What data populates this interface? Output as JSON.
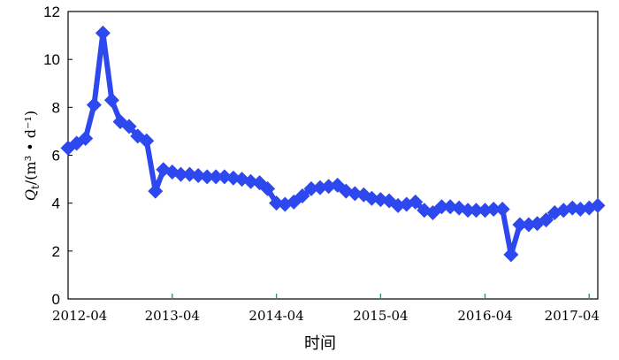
{
  "chart_data": {
    "type": "line",
    "title": "",
    "xlabel": "时间",
    "ylabel": {
      "q": "Q",
      "sub": "t",
      "unit": "/(m³ • d⁻¹)"
    },
    "ylim": [
      0,
      12
    ],
    "y_ticks": [
      0,
      2,
      4,
      6,
      8,
      10,
      12
    ],
    "xlim": [
      "2012-04-01",
      "2017-05-01"
    ],
    "x_ticks": [
      {
        "date": "2012-04-01",
        "label": "2012-04"
      },
      {
        "date": "2013-04-01",
        "label": "2013-04"
      },
      {
        "date": "2014-04-01",
        "label": "2014-04"
      },
      {
        "date": "2015-04-01",
        "label": "2015-04"
      },
      {
        "date": "2016-04-01",
        "label": "2016-04"
      },
      {
        "date": "2017-04-01",
        "label": "2017-04"
      }
    ],
    "grid": false,
    "marker": "diamond",
    "color": "#2c48ee",
    "x": [
      "2012-04-01",
      "2012-05-01",
      "2012-06-01",
      "2012-07-01",
      "2012-08-01",
      "2012-09-01",
      "2012-10-01",
      "2012-11-01",
      "2012-12-01",
      "2013-01-01",
      "2013-02-01",
      "2013-03-01",
      "2013-04-01",
      "2013-05-01",
      "2013-06-01",
      "2013-07-01",
      "2013-08-01",
      "2013-09-01",
      "2013-10-01",
      "2013-11-01",
      "2013-12-01",
      "2014-01-01",
      "2014-02-01",
      "2014-03-01",
      "2014-04-01",
      "2014-05-01",
      "2014-06-01",
      "2014-07-01",
      "2014-08-01",
      "2014-09-01",
      "2014-10-01",
      "2014-11-01",
      "2014-12-01",
      "2015-01-01",
      "2015-02-01",
      "2015-03-01",
      "2015-04-01",
      "2015-05-01",
      "2015-06-01",
      "2015-07-01",
      "2015-08-01",
      "2015-09-01",
      "2015-10-01",
      "2015-11-01",
      "2015-12-01",
      "2016-01-01",
      "2016-02-01",
      "2016-03-01",
      "2016-04-01",
      "2016-05-01",
      "2016-06-01",
      "2016-07-01",
      "2016-08-01",
      "2016-09-01",
      "2016-10-01",
      "2016-11-01",
      "2016-12-01",
      "2017-01-01",
      "2017-02-01",
      "2017-03-01",
      "2017-04-01",
      "2017-05-01"
    ],
    "series": [
      {
        "values": [
          6.3,
          6.5,
          6.7,
          8.1,
          11.1,
          8.3,
          7.4,
          7.2,
          6.8,
          6.6,
          4.5,
          5.4,
          5.3,
          5.2,
          5.2,
          5.15,
          5.1,
          5.1,
          5.1,
          5.05,
          5.0,
          4.9,
          4.85,
          4.6,
          4.0,
          3.95,
          4.05,
          4.3,
          4.6,
          4.65,
          4.7,
          4.75,
          4.5,
          4.4,
          4.35,
          4.2,
          4.15,
          4.1,
          3.9,
          3.95,
          4.05,
          3.7,
          3.6,
          3.85,
          3.85,
          3.8,
          3.7,
          3.7,
          3.7,
          3.75,
          3.75,
          1.85,
          3.1,
          3.1,
          3.15,
          3.3,
          3.6,
          3.7,
          3.8,
          3.75,
          3.8,
          3.9
        ]
      }
    ]
  }
}
